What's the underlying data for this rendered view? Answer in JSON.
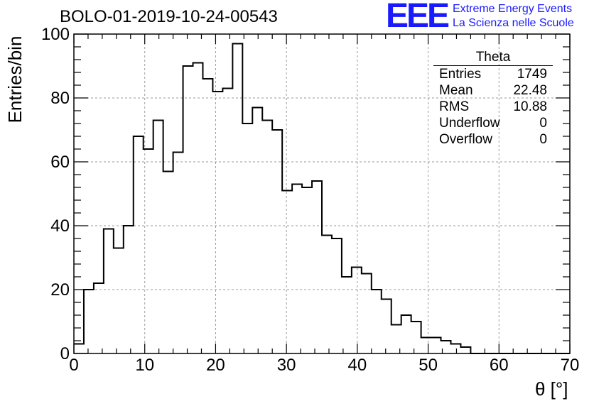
{
  "chart_data": {
    "type": "bar",
    "title": "BOLO-01-2019-10-24-00543",
    "xlabel": "θ [°]",
    "ylabel": "Entries/bin",
    "xlim": [
      0,
      70
    ],
    "ylim": [
      0,
      100
    ],
    "grid": true,
    "bin_width": 1.4,
    "x_ticks": [
      "0",
      "10",
      "20",
      "30",
      "40",
      "50",
      "60",
      "70"
    ],
    "y_ticks": [
      "0",
      "20",
      "40",
      "60",
      "80",
      "100"
    ],
    "values": [
      3,
      20,
      22,
      39,
      33,
      40,
      68,
      64,
      73,
      57,
      63,
      90,
      91,
      86,
      82,
      83,
      97,
      72,
      77,
      73,
      70,
      51,
      53,
      52,
      54,
      37,
      36,
      24,
      27,
      25,
      20,
      17,
      9,
      12,
      10,
      5,
      5,
      4,
      3,
      2,
      0,
      0,
      0,
      0,
      0,
      0,
      0,
      0,
      0,
      0
    ],
    "line_color": "#000000"
  },
  "logo": {
    "mark": "EEE",
    "line1": "Extreme Energy Events",
    "line2": "La Scienza nelle Scuole",
    "color": "#1a1aff"
  },
  "stats": {
    "title": "Theta",
    "rows": [
      {
        "label": "Entries",
        "value": "1749"
      },
      {
        "label": "Mean",
        "value": "22.48"
      },
      {
        "label": "RMS",
        "value": "10.88"
      },
      {
        "label": "Underflow",
        "value": "0"
      },
      {
        "label": "Overflow",
        "value": "0"
      }
    ]
  }
}
